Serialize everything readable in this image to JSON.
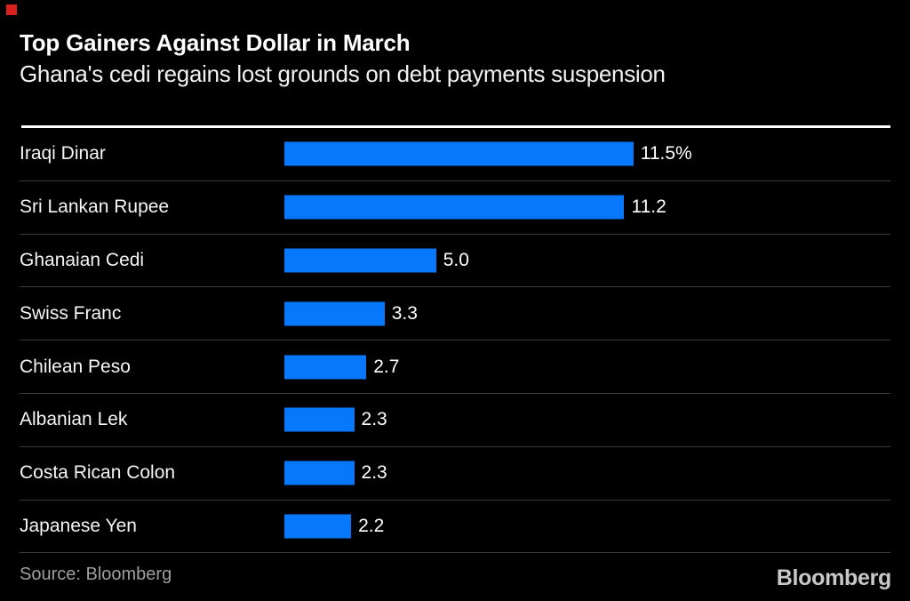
{
  "header": {
    "title": "Top Gainers Against Dollar in March",
    "subtitle": "Ghana's cedi regains lost grounds on debt payments suspension"
  },
  "chart_data": {
    "type": "bar",
    "orientation": "horizontal",
    "title": "Top Gainers Against Dollar in March",
    "subtitle": "Ghana's cedi regains lost grounds on debt payments suspension",
    "categories": [
      "Iraqi Dinar",
      "Sri Lankan Rupee",
      "Ghanaian Cedi",
      "Swiss Franc",
      "Chilean Peso",
      "Albanian Lek",
      "Costa Rican Colon",
      "Japanese Yen"
    ],
    "values": [
      11.5,
      11.2,
      5.0,
      3.3,
      2.7,
      2.3,
      2.3,
      2.2
    ],
    "value_labels": [
      "11.5%",
      "11.2",
      "5.0",
      "3.3",
      "2.7",
      "2.3",
      "2.3",
      "2.2"
    ],
    "unit": "%",
    "xlabel": "",
    "ylabel": "",
    "xlim": [
      0,
      11.5
    ],
    "grid": false,
    "legend": false,
    "bar_color": "#0777fb",
    "background_color": "#000000"
  },
  "footer": {
    "source": "Source: Bloomberg",
    "logo": "Bloomberg"
  },
  "colors": {
    "accent_red": "#d8201f",
    "bar_blue": "#0777fb",
    "rule_white": "#ffffff",
    "separator_gray": "#3a3a3a",
    "source_gray": "#9f9f9f",
    "logo_gray": "#c8c8c8"
  }
}
